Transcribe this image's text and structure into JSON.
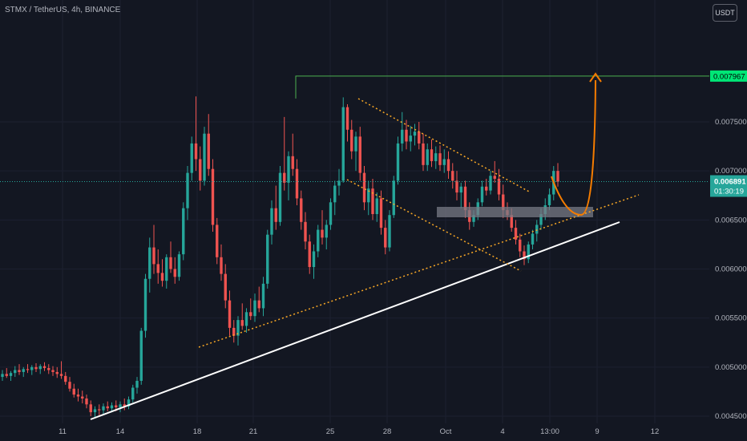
{
  "header": {
    "title": "STMX / TetherUS, 4h, BINANCE",
    "currency": "USDT"
  },
  "chart_data": {
    "type": "candlestick",
    "symbol": "STMX / TetherUS",
    "interval": "4h",
    "exchange": "BINANCE",
    "ylim": [
      0.0044,
      0.008
    ],
    "y_ticks": [
      "0.004500",
      "0.005000",
      "0.005500",
      "0.006000",
      "0.006500",
      "0.007000",
      "0.007500"
    ],
    "x_ticks": [
      "11",
      "14",
      "18",
      "21",
      "25",
      "28",
      "Oct",
      "4",
      "13:00",
      "9",
      "12"
    ],
    "target_price": "0.007967",
    "last_price": "0.006891",
    "countdown": "01:30:19",
    "candles": [
      [
        0.0049,
        0.00497,
        0.00486,
        0.00493
      ],
      [
        0.00493,
        0.00499,
        0.00489,
        0.00491
      ],
      [
        0.00491,
        0.00496,
        0.00486,
        0.00494
      ],
      [
        0.00494,
        0.00501,
        0.0049,
        0.00497
      ],
      [
        0.00497,
        0.00503,
        0.00492,
        0.00495
      ],
      [
        0.00495,
        0.005,
        0.0049,
        0.00498
      ],
      [
        0.00498,
        0.00503,
        0.00494,
        0.00497
      ],
      [
        0.00497,
        0.00502,
        0.00492,
        0.005
      ],
      [
        0.005,
        0.00504,
        0.00495,
        0.00498
      ],
      [
        0.00498,
        0.00503,
        0.00493,
        0.00501
      ],
      [
        0.00501,
        0.00505,
        0.00496,
        0.00499
      ],
      [
        0.00499,
        0.00503,
        0.00493,
        0.00497
      ],
      [
        0.00497,
        0.00501,
        0.00491,
        0.00495
      ],
      [
        0.00495,
        0.005,
        0.00489,
        0.00493
      ],
      [
        0.00493,
        0.00506,
        0.00488,
        0.00491
      ],
      [
        0.00491,
        0.00495,
        0.00482,
        0.00485
      ],
      [
        0.00485,
        0.0049,
        0.00475,
        0.00478
      ],
      [
        0.00478,
        0.00483,
        0.00469,
        0.00472
      ],
      [
        0.00472,
        0.00478,
        0.00465,
        0.0047
      ],
      [
        0.0047,
        0.00476,
        0.00463,
        0.00468
      ],
      [
        0.00468,
        0.00472,
        0.00458,
        0.00462
      ],
      [
        0.00462,
        0.00466,
        0.0045,
        0.00454
      ],
      [
        0.00454,
        0.0046,
        0.00449,
        0.00457
      ],
      [
        0.00457,
        0.00462,
        0.00451,
        0.00456
      ],
      [
        0.00456,
        0.00463,
        0.00452,
        0.0046
      ],
      [
        0.0046,
        0.00465,
        0.00455,
        0.00458
      ],
      [
        0.00458,
        0.00464,
        0.00454,
        0.00461
      ],
      [
        0.00461,
        0.00466,
        0.00455,
        0.00459
      ],
      [
        0.00459,
        0.00465,
        0.00454,
        0.00462
      ],
      [
        0.00462,
        0.00468,
        0.00456,
        0.0046
      ],
      [
        0.0046,
        0.0047,
        0.00457,
        0.00467
      ],
      [
        0.00467,
        0.00482,
        0.00464,
        0.00479
      ],
      [
        0.00479,
        0.0049,
        0.00473,
        0.00486
      ],
      [
        0.00486,
        0.0054,
        0.00482,
        0.00537
      ],
      [
        0.00537,
        0.00595,
        0.0053,
        0.0059
      ],
      [
        0.0059,
        0.00632,
        0.00576,
        0.00622
      ],
      [
        0.00622,
        0.00645,
        0.00595,
        0.00605
      ],
      [
        0.00605,
        0.0062,
        0.00585,
        0.00596
      ],
      [
        0.00596,
        0.0061,
        0.00582,
        0.00588
      ],
      [
        0.00588,
        0.00615,
        0.0058,
        0.00612
      ],
      [
        0.00612,
        0.00628,
        0.00596,
        0.006
      ],
      [
        0.006,
        0.00612,
        0.00585,
        0.00592
      ],
      [
        0.00592,
        0.00618,
        0.00588,
        0.00615
      ],
      [
        0.00615,
        0.00668,
        0.00609,
        0.00662
      ],
      [
        0.00662,
        0.00705,
        0.0065,
        0.00698
      ],
      [
        0.00698,
        0.00735,
        0.0069,
        0.00728
      ],
      [
        0.00728,
        0.00776,
        0.007,
        0.00712
      ],
      [
        0.00712,
        0.00725,
        0.0068,
        0.0069
      ],
      [
        0.0069,
        0.00745,
        0.00685,
        0.00738
      ],
      [
        0.00738,
        0.00758,
        0.00695,
        0.00702
      ],
      [
        0.00702,
        0.00712,
        0.00638,
        0.00645
      ],
      [
        0.00645,
        0.00652,
        0.00605,
        0.00612
      ],
      [
        0.00612,
        0.00625,
        0.00588,
        0.00595
      ],
      [
        0.00595,
        0.00605,
        0.0056,
        0.00568
      ],
      [
        0.00568,
        0.00578,
        0.00532,
        0.0054
      ],
      [
        0.0054,
        0.00548,
        0.00525,
        0.00532
      ],
      [
        0.00532,
        0.00552,
        0.00522,
        0.00548
      ],
      [
        0.00548,
        0.00565,
        0.00538,
        0.00542
      ],
      [
        0.00542,
        0.0056,
        0.00535,
        0.00556
      ],
      [
        0.00556,
        0.0057,
        0.00548,
        0.00552
      ],
      [
        0.00552,
        0.00575,
        0.00546,
        0.00568
      ],
      [
        0.00568,
        0.00582,
        0.00556,
        0.0056
      ],
      [
        0.0056,
        0.00592,
        0.00552,
        0.00585
      ],
      [
        0.00585,
        0.0064,
        0.0058,
        0.00635
      ],
      [
        0.00635,
        0.0067,
        0.00625,
        0.00662
      ],
      [
        0.00662,
        0.00685,
        0.0064,
        0.00648
      ],
      [
        0.00648,
        0.00705,
        0.00644,
        0.00698
      ],
      [
        0.00698,
        0.00755,
        0.0068,
        0.00688
      ],
      [
        0.00688,
        0.0072,
        0.0067,
        0.00715
      ],
      [
        0.00715,
        0.00738,
        0.00695,
        0.00702
      ],
      [
        0.00702,
        0.00712,
        0.00665,
        0.00672
      ],
      [
        0.00672,
        0.0068,
        0.0064,
        0.00648
      ],
      [
        0.00648,
        0.00658,
        0.0062,
        0.00628
      ],
      [
        0.00628,
        0.00635,
        0.00595,
        0.00602
      ],
      [
        0.00602,
        0.00625,
        0.0059,
        0.00618
      ],
      [
        0.00618,
        0.00645,
        0.00612,
        0.0064
      ],
      [
        0.0064,
        0.0066,
        0.00625,
        0.00632
      ],
      [
        0.00632,
        0.0065,
        0.0062,
        0.00645
      ],
      [
        0.00645,
        0.00672,
        0.0064,
        0.00668
      ],
      [
        0.00668,
        0.0069,
        0.00655,
        0.00685
      ],
      [
        0.00685,
        0.00702,
        0.00675,
        0.0069
      ],
      [
        0.0069,
        0.00775,
        0.00688,
        0.00765
      ],
      [
        0.00765,
        0.00768,
        0.0073,
        0.00742
      ],
      [
        0.00742,
        0.00752,
        0.00712,
        0.0072
      ],
      [
        0.0072,
        0.0074,
        0.007,
        0.00735
      ],
      [
        0.00735,
        0.00745,
        0.0069,
        0.00698
      ],
      [
        0.00698,
        0.00705,
        0.0066,
        0.00668
      ],
      [
        0.00668,
        0.0069,
        0.00655,
        0.00682
      ],
      [
        0.00682,
        0.00692,
        0.0065,
        0.00656
      ],
      [
        0.00656,
        0.00678,
        0.00648,
        0.00672
      ],
      [
        0.00672,
        0.0068,
        0.00635,
        0.00642
      ],
      [
        0.00642,
        0.0065,
        0.00615,
        0.00622
      ],
      [
        0.00622,
        0.0066,
        0.00618,
        0.00655
      ],
      [
        0.00655,
        0.00695,
        0.00652,
        0.0069
      ],
      [
        0.0069,
        0.00735,
        0.00686,
        0.00728
      ],
      [
        0.00728,
        0.0076,
        0.0072,
        0.00742
      ],
      [
        0.00742,
        0.00752,
        0.00722,
        0.0073
      ],
      [
        0.0073,
        0.00746,
        0.0072,
        0.00736
      ],
      [
        0.00736,
        0.00748,
        0.00726,
        0.0074
      ],
      [
        0.0074,
        0.0075,
        0.00722,
        0.00728
      ],
      [
        0.00728,
        0.00738,
        0.007,
        0.00706
      ],
      [
        0.00706,
        0.00728,
        0.007,
        0.00722
      ],
      [
        0.00722,
        0.00732,
        0.00704,
        0.0071
      ],
      [
        0.0071,
        0.00725,
        0.00702,
        0.00718
      ],
      [
        0.00718,
        0.00726,
        0.007,
        0.00706
      ],
      [
        0.00706,
        0.00722,
        0.00698,
        0.00712
      ],
      [
        0.00712,
        0.0072,
        0.00692,
        0.007
      ],
      [
        0.007,
        0.00708,
        0.00682,
        0.0069
      ],
      [
        0.0069,
        0.007,
        0.0067,
        0.00678
      ],
      [
        0.00678,
        0.00688,
        0.00662,
        0.00684
      ],
      [
        0.00684,
        0.0069,
        0.00652,
        0.0066
      ],
      [
        0.0066,
        0.00668,
        0.0064,
        0.00648
      ],
      [
        0.00648,
        0.0066,
        0.00643,
        0.00655
      ],
      [
        0.00655,
        0.00672,
        0.0065,
        0.00668
      ],
      [
        0.00668,
        0.0069,
        0.00664,
        0.00684
      ],
      [
        0.00684,
        0.00692,
        0.00675,
        0.0068
      ],
      [
        0.0068,
        0.007,
        0.00676,
        0.00695
      ],
      [
        0.00695,
        0.0071,
        0.00688,
        0.00692
      ],
      [
        0.00692,
        0.00702,
        0.0067,
        0.00676
      ],
      [
        0.00676,
        0.00686,
        0.00652,
        0.0066
      ],
      [
        0.0066,
        0.00668,
        0.0065,
        0.00655
      ],
      [
        0.00655,
        0.00662,
        0.00638,
        0.00642
      ],
      [
        0.00642,
        0.0065,
        0.00625,
        0.0063
      ],
      [
        0.0063,
        0.00636,
        0.00612,
        0.00618
      ],
      [
        0.00618,
        0.00624,
        0.00604,
        0.0061
      ],
      [
        0.0061,
        0.00628,
        0.00606,
        0.00625
      ],
      [
        0.00625,
        0.0064,
        0.0062,
        0.00636
      ],
      [
        0.00636,
        0.0065,
        0.00628,
        0.00645
      ],
      [
        0.00645,
        0.00662,
        0.0064,
        0.00656
      ],
      [
        0.00656,
        0.00672,
        0.0065,
        0.00665
      ],
      [
        0.00665,
        0.00682,
        0.0066,
        0.00676
      ],
      [
        0.00676,
        0.00705,
        0.0067,
        0.007
      ],
      [
        0.007,
        0.00708,
        0.00684,
        0.00689
      ]
    ]
  }
}
